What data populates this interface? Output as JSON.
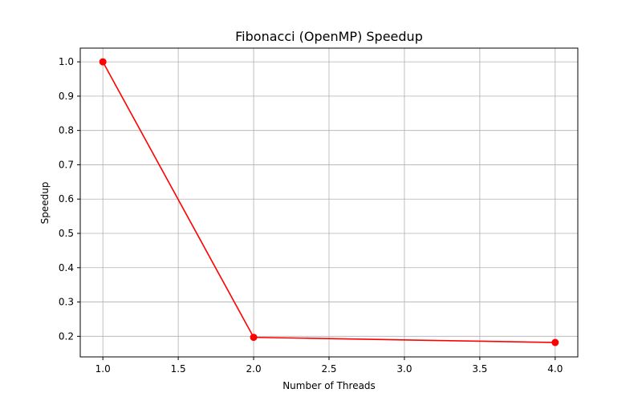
{
  "chart_data": {
    "type": "line",
    "title": "Fibonacci (OpenMP) Speedup",
    "xlabel": "Number of Threads",
    "ylabel": "Speedup",
    "xlim": [
      0.85,
      4.15
    ],
    "ylim": [
      0.14,
      1.04
    ],
    "xticks": [
      1.0,
      1.5,
      2.0,
      2.5,
      3.0,
      3.5,
      4.0
    ],
    "xtick_labels": [
      "1.0",
      "1.5",
      "2.0",
      "2.5",
      "3.0",
      "3.5",
      "4.0"
    ],
    "yticks": [
      0.2,
      0.3,
      0.4,
      0.5,
      0.6,
      0.7,
      0.8,
      0.9,
      1.0
    ],
    "ytick_labels": [
      "0.2",
      "0.3",
      "0.4",
      "0.5",
      "0.6",
      "0.7",
      "0.8",
      "0.9",
      "1.0"
    ],
    "grid": true,
    "legend": "none",
    "series": [
      {
        "x": [
          1,
          2,
          4
        ],
        "values": [
          1.0,
          0.197,
          0.182
        ],
        "color": "#ff0000",
        "marker": "circle"
      }
    ]
  }
}
